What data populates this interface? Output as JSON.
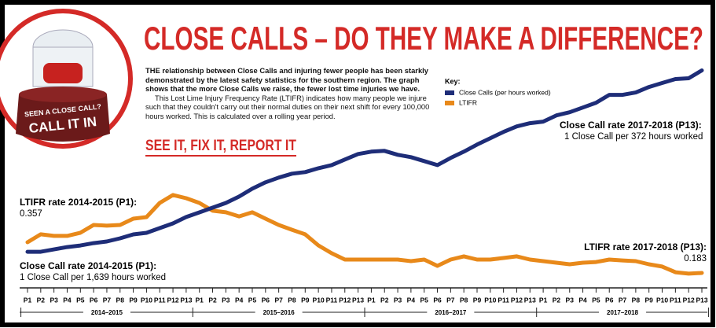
{
  "chart_data": {
    "type": "line",
    "title": "CLOSE CALLS – DO THEY MAKE A DIFFERENCE?",
    "legend_title": "Key:",
    "categories": [
      "P1",
      "P2",
      "P3",
      "P4",
      "P5",
      "P6",
      "P7",
      "P8",
      "P9",
      "P10",
      "P11",
      "P12",
      "P13",
      "P1",
      "P2",
      "P3",
      "P4",
      "P5",
      "P6",
      "P7",
      "P8",
      "P9",
      "P10",
      "P11",
      "P12",
      "P13",
      "P1",
      "P2",
      "P3",
      "P4",
      "P5",
      "P6",
      "P7",
      "P8",
      "P9",
      "P10",
      "P11",
      "P12",
      "P13",
      "P1",
      "P2",
      "P3",
      "P4",
      "P5",
      "P6",
      "P7",
      "P8",
      "P9",
      "P10",
      "P11",
      "P12",
      "P13"
    ],
    "period_groups": [
      "2014–2015",
      "2015–2016",
      "2016–2017",
      "2017–2018"
    ],
    "series": [
      {
        "name": "Close Calls (per hours worked)",
        "color": "#1e2d78",
        "axis": "y2",
        "values": [
          0.00061,
          0.00061,
          0.000637,
          0.000664,
          0.000682,
          0.000709,
          0.000728,
          0.000764,
          0.000809,
          0.000827,
          0.000881,
          0.000935,
          0.001008,
          0.001062,
          0.001116,
          0.00117,
          0.001243,
          0.001333,
          0.001406,
          0.00146,
          0.001505,
          0.001523,
          0.001568,
          0.001604,
          0.001668,
          0.001731,
          0.001758,
          0.001767,
          0.001722,
          0.001695,
          0.00165,
          0.001604,
          0.001686,
          0.001758,
          0.001839,
          0.001912,
          0.001984,
          0.002047,
          0.002084,
          0.002102,
          0.002174,
          0.00221,
          0.002264,
          0.002319,
          0.002409,
          0.002409,
          0.002436,
          0.002499,
          0.002545,
          0.00259,
          0.002599,
          0.002689
        ]
      },
      {
        "name": "LTIFR",
        "color": "#e8891a",
        "values": [
          0.357,
          0.402,
          0.393,
          0.393,
          0.411,
          0.455,
          0.451,
          0.455,
          0.491,
          0.5,
          0.58,
          0.625,
          0.607,
          0.58,
          0.536,
          0.527,
          0.504,
          0.527,
          0.491,
          0.455,
          0.428,
          0.402,
          0.339,
          0.295,
          0.259,
          0.259,
          0.259,
          0.259,
          0.259,
          0.25,
          0.259,
          0.223,
          0.259,
          0.277,
          0.259,
          0.259,
          0.268,
          0.277,
          0.259,
          0.25,
          0.241,
          0.232,
          0.241,
          0.245,
          0.259,
          0.254,
          0.25,
          0.232,
          0.219,
          0.187,
          0.179,
          0.183
        ]
      }
    ],
    "ylim": [
      0.125,
      1.352
    ],
    "y2lim": [
      0.00025,
      0.00273
    ],
    "annotations": [
      {
        "title": "LTIFR rate 2014-2015 (P1):",
        "text": "0.357"
      },
      {
        "title": "Close Call rate 2014-2015 (P1):",
        "text": "1 Close Call per 1,639 hours worked"
      },
      {
        "title": "Close Call rate 2017-2018 (P13):",
        "text": "1 Close Call per 372 hours worked"
      },
      {
        "title": "LTIFR rate 2017-2018 (P13):",
        "text": "0.183"
      }
    ]
  },
  "intro": {
    "lead": "THE relationship between Close Calls and injuring fewer people has been starkly demonstrated by the latest safety statistics for the southern region. The graph shows that the more Close Calls we raise, the fewer lost time injuries we have.",
    "more": "This Lost Lime Injury Frequency Rate (LTIFR) indicates how many people we injure such that they couldn't carry out their normal duties on their next shift for every 100,000 hours worked. This is calculated over a rolling year period."
  },
  "slogan": "SEE IT, FIX IT, REPORT IT",
  "badge": {
    "line1": "SEEN A CLOSE CALL?",
    "line2": "CALL IT IN"
  }
}
